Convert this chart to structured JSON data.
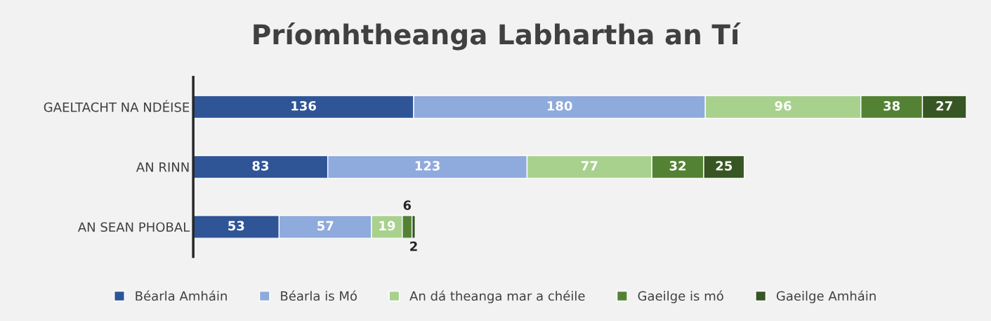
{
  "chart_data": {
    "type": "bar",
    "orientation": "horizontal",
    "stacked": true,
    "title": "Príomhtheanga Labhartha an Tí",
    "categories": [
      "GAELTACHT NA NDÉISE",
      "AN RINN",
      "AN SEAN PHOBAL"
    ],
    "series": [
      {
        "name": "Béarla Amháin",
        "color": "#2f5597",
        "values": [
          136,
          83,
          53
        ]
      },
      {
        "name": "Béarla is Mó",
        "color": "#8faadc",
        "values": [
          180,
          123,
          57
        ]
      },
      {
        "name": "An dá theanga mar a chéile",
        "color": "#a9d18e",
        "values": [
          96,
          77,
          19
        ]
      },
      {
        "name": "Gaeilge is mó",
        "color": "#548235",
        "values": [
          38,
          32,
          6
        ]
      },
      {
        "name": "Gaeilge Amháin",
        "color": "#375623",
        "values": [
          27,
          25,
          2
        ]
      }
    ],
    "data_labels": true,
    "legend": "bottom",
    "tick_labels": "y"
  }
}
